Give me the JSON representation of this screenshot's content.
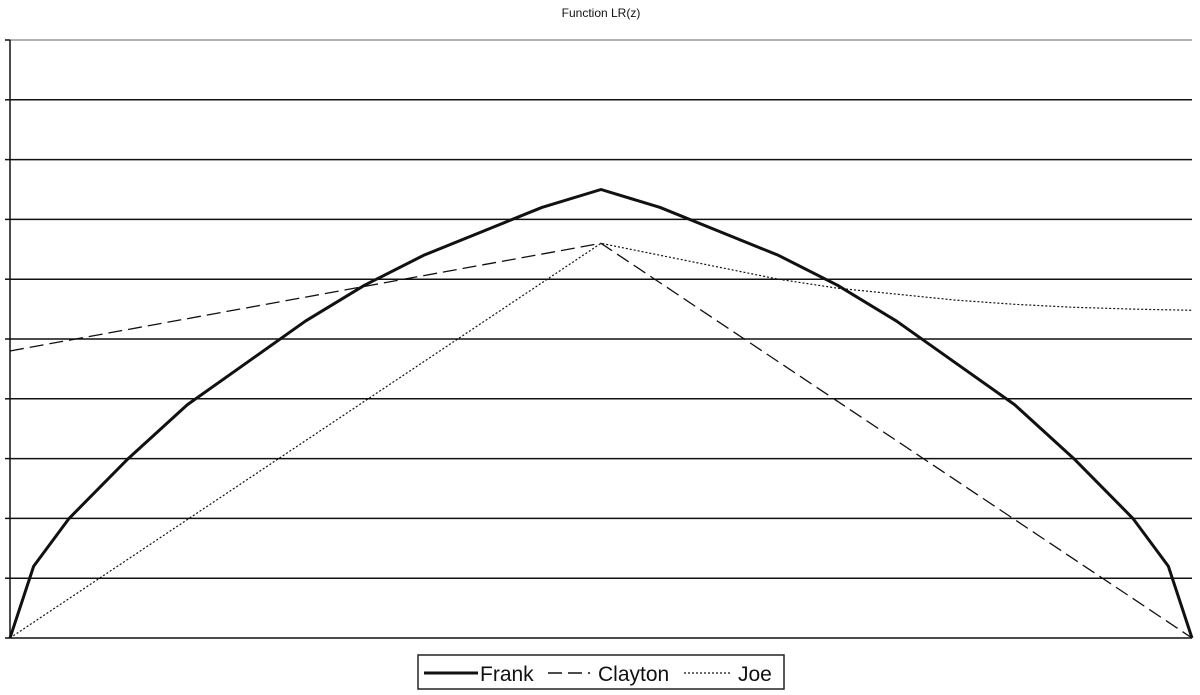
{
  "chart_data": {
    "type": "line",
    "title": "Function LR(z)",
    "xlabel": "",
    "ylabel": "",
    "xlim": [
      0,
      1
    ],
    "ylim": [
      0,
      10
    ],
    "yticks": [
      0,
      1,
      2,
      3,
      4,
      5,
      6,
      7,
      8,
      9,
      10
    ],
    "grid": true,
    "legend_position": "bottom",
    "series": [
      {
        "name": "Frank",
        "style": "solid",
        "x": [
          0,
          0.02,
          0.05,
          0.1,
          0.15,
          0.2,
          0.25,
          0.3,
          0.35,
          0.4,
          0.45,
          0.5,
          0.55,
          0.6,
          0.65,
          0.7,
          0.75,
          0.8,
          0.85,
          0.9,
          0.95,
          0.98,
          1
        ],
        "y": [
          0,
          1.2,
          2.0,
          3.0,
          3.9,
          4.6,
          5.3,
          5.9,
          6.4,
          6.8,
          7.2,
          7.5,
          7.2,
          6.8,
          6.4,
          5.9,
          5.3,
          4.6,
          3.9,
          3.0,
          2.0,
          1.2,
          0
        ]
      },
      {
        "name": "Clayton",
        "style": "dashed",
        "x": [
          0,
          0.5,
          1
        ],
        "y": [
          4.8,
          6.6,
          0
        ]
      },
      {
        "name": "Joe",
        "style": "dotted",
        "x": [
          0,
          0.5,
          0.55,
          0.6,
          0.65,
          0.7,
          0.75,
          0.8,
          0.85,
          0.9,
          0.95,
          1
        ],
        "y": [
          0,
          6.6,
          6.4,
          6.2,
          6.0,
          5.85,
          5.75,
          5.65,
          5.58,
          5.53,
          5.5,
          5.48
        ]
      }
    ]
  }
}
